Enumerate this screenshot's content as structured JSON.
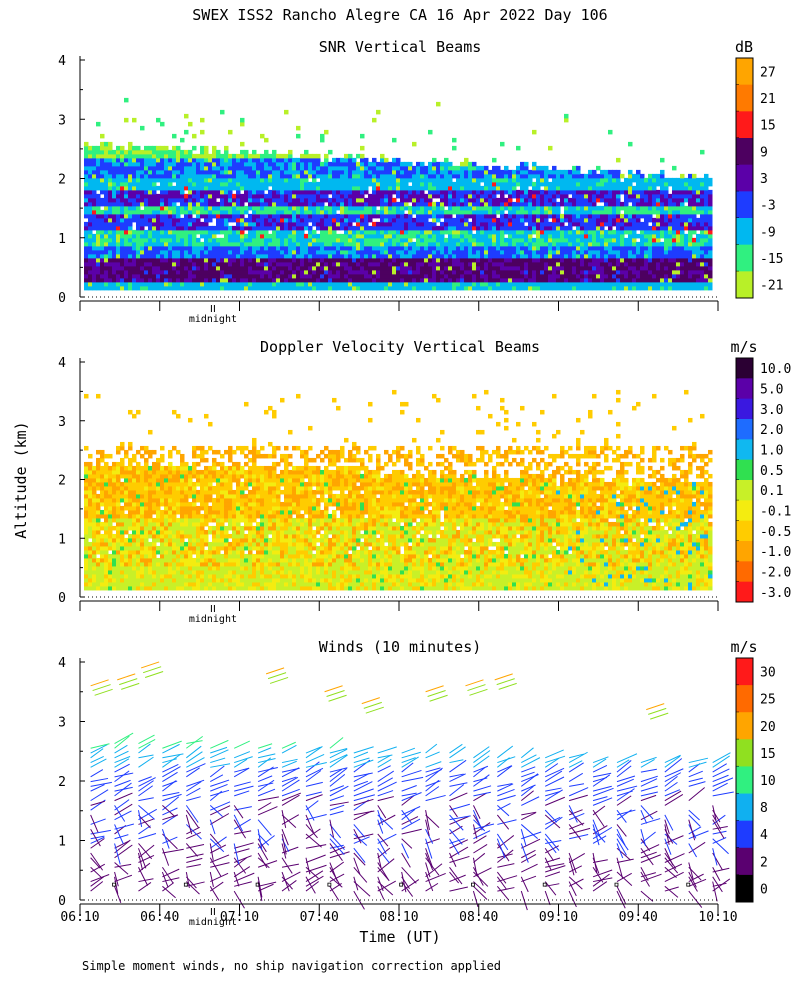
{
  "figure": {
    "title": "SWEX ISS2 Rancho Alegre CA  16 Apr 2022 Day 106",
    "y_axis_label": "Altitude (km)",
    "x_axis_label": "Time (UT)",
    "footnote": "Simple moment winds, no ship navigation correction applied",
    "midnight_label": "midnight",
    "x_range_minutes": [
      370,
      610
    ],
    "x_ticks": [
      {
        "minute": 370,
        "label": "06:10"
      },
      {
        "minute": 400,
        "label": "06:40"
      },
      {
        "minute": 430,
        "label": "07:10"
      },
      {
        "minute": 460,
        "label": "07:40"
      },
      {
        "minute": 490,
        "label": "08:10"
      },
      {
        "minute": 520,
        "label": "08:40"
      },
      {
        "minute": 550,
        "label": "09:10"
      },
      {
        "minute": 580,
        "label": "09:40"
      },
      {
        "minute": 610,
        "label": "10:10"
      }
    ],
    "midnight_minute": 420
  },
  "chart_data": [
    {
      "type": "heatmap",
      "title": "SNR Vertical Beams",
      "unit": "dB",
      "xlabel": "Time (UT)",
      "ylabel": "Altitude (km)",
      "ylim": [
        0,
        4
      ],
      "y_ticks": [
        "0",
        "1",
        "2",
        "3",
        "4"
      ],
      "colorbar": {
        "labels": [
          "27",
          "21",
          "15",
          "9",
          "3",
          "-3",
          "-9",
          "-15",
          "-21"
        ],
        "colors": [
          "#ffa500",
          "#ff7a00",
          "#ff1a1a",
          "#4d0060",
          "#5b00a8",
          "#1e3cff",
          "#00b8f0",
          "#30f080",
          "#b8f028"
        ]
      },
      "layers_km": [
        {
          "altitude": 0.4,
          "snr_db": 9
        },
        {
          "altitude": 0.9,
          "snr_db": -3
        },
        {
          "altitude": 1.2,
          "snr_db": -3
        },
        {
          "altitude": 1.6,
          "snr_db": 3
        },
        {
          "altitude": 2.1,
          "snr_db": -9
        },
        {
          "altitude": 2.5,
          "snr_db": -15
        }
      ]
    },
    {
      "type": "heatmap",
      "title": "Doppler Velocity Vertical Beams",
      "unit": "m/s",
      "xlabel": "Time (UT)",
      "ylabel": "Altitude (km)",
      "ylim": [
        0,
        4
      ],
      "y_ticks": [
        "0",
        "1",
        "2",
        "3",
        "4"
      ],
      "colorbar": {
        "labels": [
          "10.0",
          "5.0",
          "3.0",
          "2.0",
          "1.0",
          "0.5",
          "0.1",
          "-0.1",
          "-0.5",
          "-1.0",
          "-2.0",
          "-3.0"
        ],
        "colors": [
          "#2b0033",
          "#5b00a8",
          "#3a18e0",
          "#1e6cff",
          "#10b8f0",
          "#30e050",
          "#c8f028",
          "#f4ec10",
          "#ffcc00",
          "#ffa500",
          "#ff6a00",
          "#ff1a1a"
        ]
      },
      "layers_km": [
        {
          "altitude": 0.3,
          "velocity_ms": 0.1
        },
        {
          "altitude": 1.0,
          "velocity_ms": -0.1
        },
        {
          "altitude": 1.7,
          "velocity_ms": -0.5
        },
        {
          "altitude": 2.2,
          "velocity_ms": -1.0
        }
      ]
    },
    {
      "type": "scatter",
      "title": "Winds (10 minutes)",
      "unit": "m/s",
      "xlabel": "Time (UT)",
      "ylabel": "Altitude (km)",
      "ylim": [
        0,
        4
      ],
      "y_ticks": [
        "0",
        "1",
        "2",
        "3",
        "4"
      ],
      "colorbar": {
        "labels": [
          "30",
          "25",
          "20",
          "15",
          "10",
          "8",
          "4",
          "2",
          "0"
        ],
        "colors": [
          "#ff1a1a",
          "#ff6a00",
          "#ffa500",
          "#90e020",
          "#30f080",
          "#10b0f0",
          "#1e3cff",
          "#5a0070",
          "#000000"
        ]
      },
      "profile_times_minutes": [
        374,
        383,
        392,
        401,
        410,
        419,
        428,
        437,
        446,
        455,
        464,
        473,
        482,
        491,
        500,
        509,
        518,
        527,
        536,
        545,
        554,
        563,
        572,
        581,
        590,
        599,
        608
      ]
    }
  ]
}
